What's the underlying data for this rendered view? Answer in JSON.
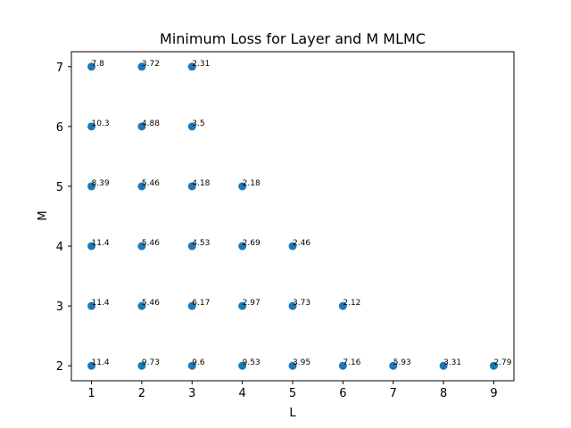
{
  "chart_data": {
    "type": "scatter",
    "title": "Minimum Loss for Layer and M MLMC",
    "xlabel": "L",
    "ylabel": "M",
    "xlim": [
      0.6,
      9.4
    ],
    "ylim": [
      1.75,
      7.25
    ],
    "xticks": [
      1,
      2,
      3,
      4,
      5,
      6,
      7,
      8,
      9
    ],
    "yticks": [
      2,
      3,
      4,
      5,
      6,
      7
    ],
    "grid": false,
    "marker_color": "#1f77b4",
    "points": [
      {
        "x": 1,
        "y": 7,
        "label": "7.8"
      },
      {
        "x": 2,
        "y": 7,
        "label": "3.72"
      },
      {
        "x": 3,
        "y": 7,
        "label": "2.31"
      },
      {
        "x": 1,
        "y": 6,
        "label": "10.3"
      },
      {
        "x": 2,
        "y": 6,
        "label": "4.88"
      },
      {
        "x": 3,
        "y": 6,
        "label": "3.5"
      },
      {
        "x": 1,
        "y": 5,
        "label": "8.39"
      },
      {
        "x": 2,
        "y": 5,
        "label": "5.46"
      },
      {
        "x": 3,
        "y": 5,
        "label": "4.18"
      },
      {
        "x": 4,
        "y": 5,
        "label": "2.18"
      },
      {
        "x": 1,
        "y": 4,
        "label": "11.4"
      },
      {
        "x": 2,
        "y": 4,
        "label": "5.46"
      },
      {
        "x": 3,
        "y": 4,
        "label": "4.53"
      },
      {
        "x": 4,
        "y": 4,
        "label": "2.69"
      },
      {
        "x": 5,
        "y": 4,
        "label": "2.46"
      },
      {
        "x": 1,
        "y": 3,
        "label": "11.4"
      },
      {
        "x": 2,
        "y": 3,
        "label": "5.46"
      },
      {
        "x": 3,
        "y": 3,
        "label": "6.17"
      },
      {
        "x": 4,
        "y": 3,
        "label": "2.97"
      },
      {
        "x": 5,
        "y": 3,
        "label": "3.73"
      },
      {
        "x": 6,
        "y": 3,
        "label": "2.12"
      },
      {
        "x": 1,
        "y": 2,
        "label": "11.4"
      },
      {
        "x": 2,
        "y": 2,
        "label": "9.73"
      },
      {
        "x": 3,
        "y": 2,
        "label": "9.6"
      },
      {
        "x": 4,
        "y": 2,
        "label": "9.53"
      },
      {
        "x": 5,
        "y": 2,
        "label": "3.95"
      },
      {
        "x": 6,
        "y": 2,
        "label": "7.16"
      },
      {
        "x": 7,
        "y": 2,
        "label": "5.93"
      },
      {
        "x": 8,
        "y": 2,
        "label": "3.31"
      },
      {
        "x": 9,
        "y": 2,
        "label": "2.79"
      }
    ]
  }
}
